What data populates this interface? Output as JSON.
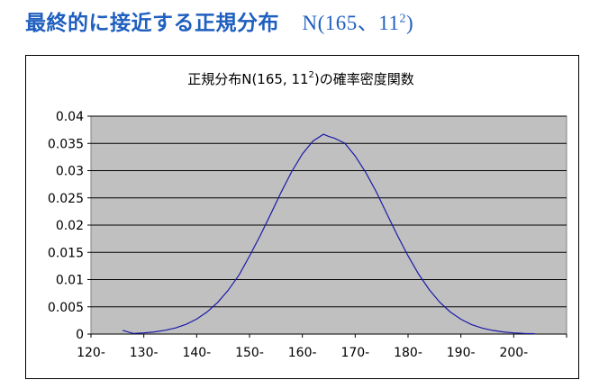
{
  "slide": {
    "heading": "最終的に接近する正規分布",
    "param_prefix": "N(165、11",
    "param_exp": "2",
    "param_suffix": ")"
  },
  "chart_data": {
    "type": "line",
    "title_prefix": "正規分布N(165, 11",
    "title_exp": "2",
    "title_suffix": ")の確率密度関数",
    "x_tick_labels": [
      "120-",
      "130-",
      "140-",
      "150-",
      "160-",
      "170-",
      "180-",
      "190-",
      "200-"
    ],
    "y_tick_labels": [
      "0",
      "0.005",
      "0.01",
      "0.015",
      "0.02",
      "0.025",
      "0.03",
      "0.035",
      "0.04"
    ],
    "xlim": [
      120,
      210
    ],
    "ylim": [
      0,
      0.04
    ],
    "grid": true,
    "legend": "none",
    "plot_background": "#c0c0c0",
    "line_color": "#1a1aa8",
    "series": [
      {
        "x": [
          126,
          128,
          130,
          132,
          134,
          136,
          138,
          140,
          142,
          144,
          146,
          148,
          150,
          152,
          154,
          156,
          158,
          160,
          162,
          164,
          165,
          166,
          168,
          170,
          172,
          174,
          176,
          178,
          180,
          182,
          184,
          186,
          188,
          190,
          192,
          194,
          196,
          198,
          200,
          202,
          204
        ],
        "y": [
          0.00068,
          0.00012,
          0.00022,
          0.0004,
          0.00069,
          0.00113,
          0.00179,
          0.00275,
          0.00408,
          0.00584,
          0.00808,
          0.01081,
          0.01432,
          0.01802,
          0.02202,
          0.02607,
          0.02984,
          0.03305,
          0.03542,
          0.03667,
          0.03627,
          0.03599,
          0.03505,
          0.03269,
          0.02963,
          0.0261,
          0.02207,
          0.01808,
          0.01436,
          0.01101,
          0.00817,
          0.00585,
          0.00405,
          0.00272,
          0.00176,
          0.0011,
          0.00067,
          0.00039,
          0.00022,
          0.00012,
          7e-05
        ]
      }
    ]
  }
}
